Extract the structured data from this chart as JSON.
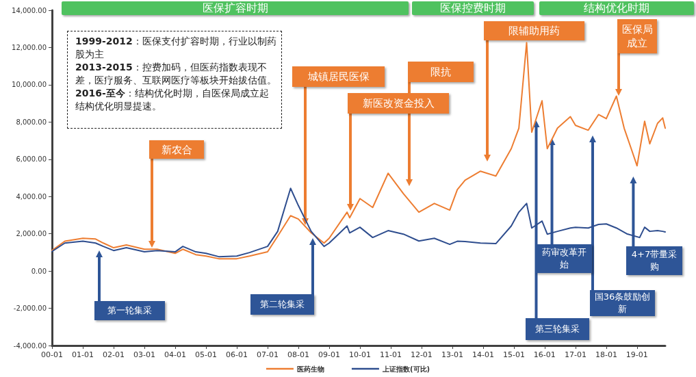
{
  "chart_data": {
    "type": "line",
    "x": [
      "2000-01",
      "2000-06",
      "2001-01",
      "2001-06",
      "2001-09",
      "2002-01",
      "2002-06",
      "2003-01",
      "2003-06",
      "2004-01",
      "2004-04",
      "2004-09",
      "2005-01",
      "2005-06",
      "2006-01",
      "2006-06",
      "2007-01",
      "2007-05",
      "2007-10",
      "2008-01",
      "2008-06",
      "2008-11",
      "2009-01",
      "2009-08",
      "2009-09",
      "2010-01",
      "2010-06",
      "2010-12",
      "2011-06",
      "2011-12",
      "2012-06",
      "2012-12",
      "2013-03",
      "2013-06",
      "2013-12",
      "2014-06",
      "2014-12",
      "2015-03",
      "2015-06",
      "2015-08",
      "2015-12",
      "2016-02",
      "2016-06",
      "2016-11",
      "2017-01",
      "2017-06",
      "2017-10",
      "2018-01",
      "2018-05",
      "2018-08",
      "2018-11",
      "2019-01",
      "2019-04",
      "2019-06",
      "2019-09",
      "2019-11",
      "2019-12"
    ],
    "series": [
      {
        "name": "医药生物",
        "color": "#ed7d31",
        "values": [
          1100,
          1600,
          1760,
          1720,
          1500,
          1250,
          1400,
          1170,
          1170,
          950,
          1170,
          880,
          800,
          660,
          660,
          800,
          1030,
          1870,
          2970,
          2790,
          2050,
          1500,
          1760,
          3160,
          2860,
          3890,
          3410,
          5250,
          4150,
          3160,
          3630,
          3270,
          4370,
          4880,
          5360,
          5100,
          6570,
          7670,
          12260,
          7450,
          9140,
          6570,
          7670,
          8290,
          7820,
          7560,
          8400,
          8180,
          9390,
          7670,
          6460,
          5650,
          8040,
          6830,
          7930,
          8220,
          7670
        ]
      },
      {
        "name": "上证指数(可比)",
        "color": "#2e4d8e",
        "x": [
          "2000-01",
          "2000-06",
          "2001-01",
          "2001-06",
          "2001-09",
          "2002-01",
          "2002-06",
          "2003-01",
          "2003-06",
          "2004-01",
          "2004-04",
          "2004-09",
          "2005-01",
          "2005-06",
          "2006-01",
          "2006-06",
          "2007-01",
          "2007-05",
          "2007-10",
          "2008-01",
          "2008-06",
          "2008-11",
          "2009-01",
          "2009-08",
          "2009-09",
          "2010-01",
          "2010-06",
          "2010-12",
          "2011-06",
          "2011-12",
          "2012-06",
          "2012-12",
          "2013-03",
          "2013-06",
          "2013-12",
          "2014-06",
          "2014-12",
          "2015-03",
          "2015-06",
          "2015-08",
          "2015-12",
          "2016-02",
          "2016-06",
          "2016-11",
          "2017-01",
          "2017-06",
          "2017-10",
          "2018-01",
          "2018-05",
          "2018-09",
          "2019-02",
          "2019-04",
          "2019-06",
          "2019-09",
          "2019-11",
          "2019-12"
        ],
        "values": [
          1050,
          1500,
          1600,
          1500,
          1320,
          1100,
          1250,
          1030,
          1100,
          1030,
          1320,
          1030,
          950,
          770,
          800,
          990,
          1320,
          2130,
          4440,
          3520,
          2130,
          1320,
          1500,
          2420,
          2050,
          2350,
          1800,
          2170,
          1980,
          1610,
          1760,
          1430,
          1600,
          1580,
          1500,
          1470,
          2420,
          3160,
          3630,
          2310,
          2680,
          1980,
          2130,
          2310,
          2350,
          2310,
          2500,
          2530,
          2310,
          2000,
          1800,
          2350,
          2130,
          2170,
          2130,
          2100
        ]
      }
    ],
    "xlim": [
      "2000-01",
      "2019-12"
    ],
    "xticks": [
      {
        "value": "2000-01",
        "label": "00-01"
      },
      {
        "value": "2001-01",
        "label": "01-01"
      },
      {
        "value": "2002-01",
        "label": "02-01"
      },
      {
        "value": "2003-01",
        "label": "03-01"
      },
      {
        "value": "2004-01",
        "label": "04-01"
      },
      {
        "value": "2005-01",
        "label": "05-01"
      },
      {
        "value": "2006-01",
        "label": "06-01"
      },
      {
        "value": "2007-01",
        "label": "07-01"
      },
      {
        "value": "2008-01",
        "label": "08-01"
      },
      {
        "value": "2009-01",
        "label": "09-01"
      },
      {
        "value": "2010-01",
        "label": "10-01"
      },
      {
        "value": "2011-01",
        "label": "11-01"
      },
      {
        "value": "2012-01",
        "label": "12-01"
      },
      {
        "value": "2013-01",
        "label": "13-01"
      },
      {
        "value": "2014-01",
        "label": "14-01"
      },
      {
        "value": "2015-01",
        "label": "15-01"
      },
      {
        "value": "2016-01",
        "label": "16-01"
      },
      {
        "value": "2017-01",
        "label": "17-01"
      },
      {
        "value": "2018-01",
        "label": "18-01"
      },
      {
        "value": "2019-01",
        "label": "19-01"
      }
    ],
    "ylim": [
      -4000,
      14000
    ],
    "yticks": [
      {
        "value": -4000,
        "label": "-4,000.00"
      },
      {
        "value": -2000,
        "label": "-2,000.00"
      },
      {
        "value": 0,
        "label": "0.00"
      },
      {
        "value": 2000,
        "label": "2,000.00"
      },
      {
        "value": 4000,
        "label": "4,000.00"
      },
      {
        "value": 6000,
        "label": "6,000.00"
      },
      {
        "value": 8000,
        "label": "8,000.00"
      },
      {
        "value": 10000,
        "label": "10,000.00"
      },
      {
        "value": 12000,
        "label": "12,000.00"
      },
      {
        "value": 14000,
        "label": "14,000.00"
      }
    ],
    "annotations": [
      "医保扩容时期",
      "医保控费时期",
      "结构优化时期",
      "1999-2012：医保支付扩容时期，行业以制药股为主\n2013-2015：控费加码，但医药指数表现不差，医疗服务、互联网医疗等板块开始拔估值。\n2016-至今：结构优化时期，自医保局成立起结构优化明显提速。",
      "新农合",
      "城镇居民医保",
      "新医改资金投入",
      "限抗",
      "限辅助用药",
      "医保局成立",
      "第一轮集采",
      "第二轮集采",
      "第三轮集采",
      "药审改革开始",
      "国36条鼓励创新",
      "4+7带量采购"
    ],
    "grid": false,
    "legend": "bottom",
    "marker": "none",
    "line_style": "solid"
  }
}
